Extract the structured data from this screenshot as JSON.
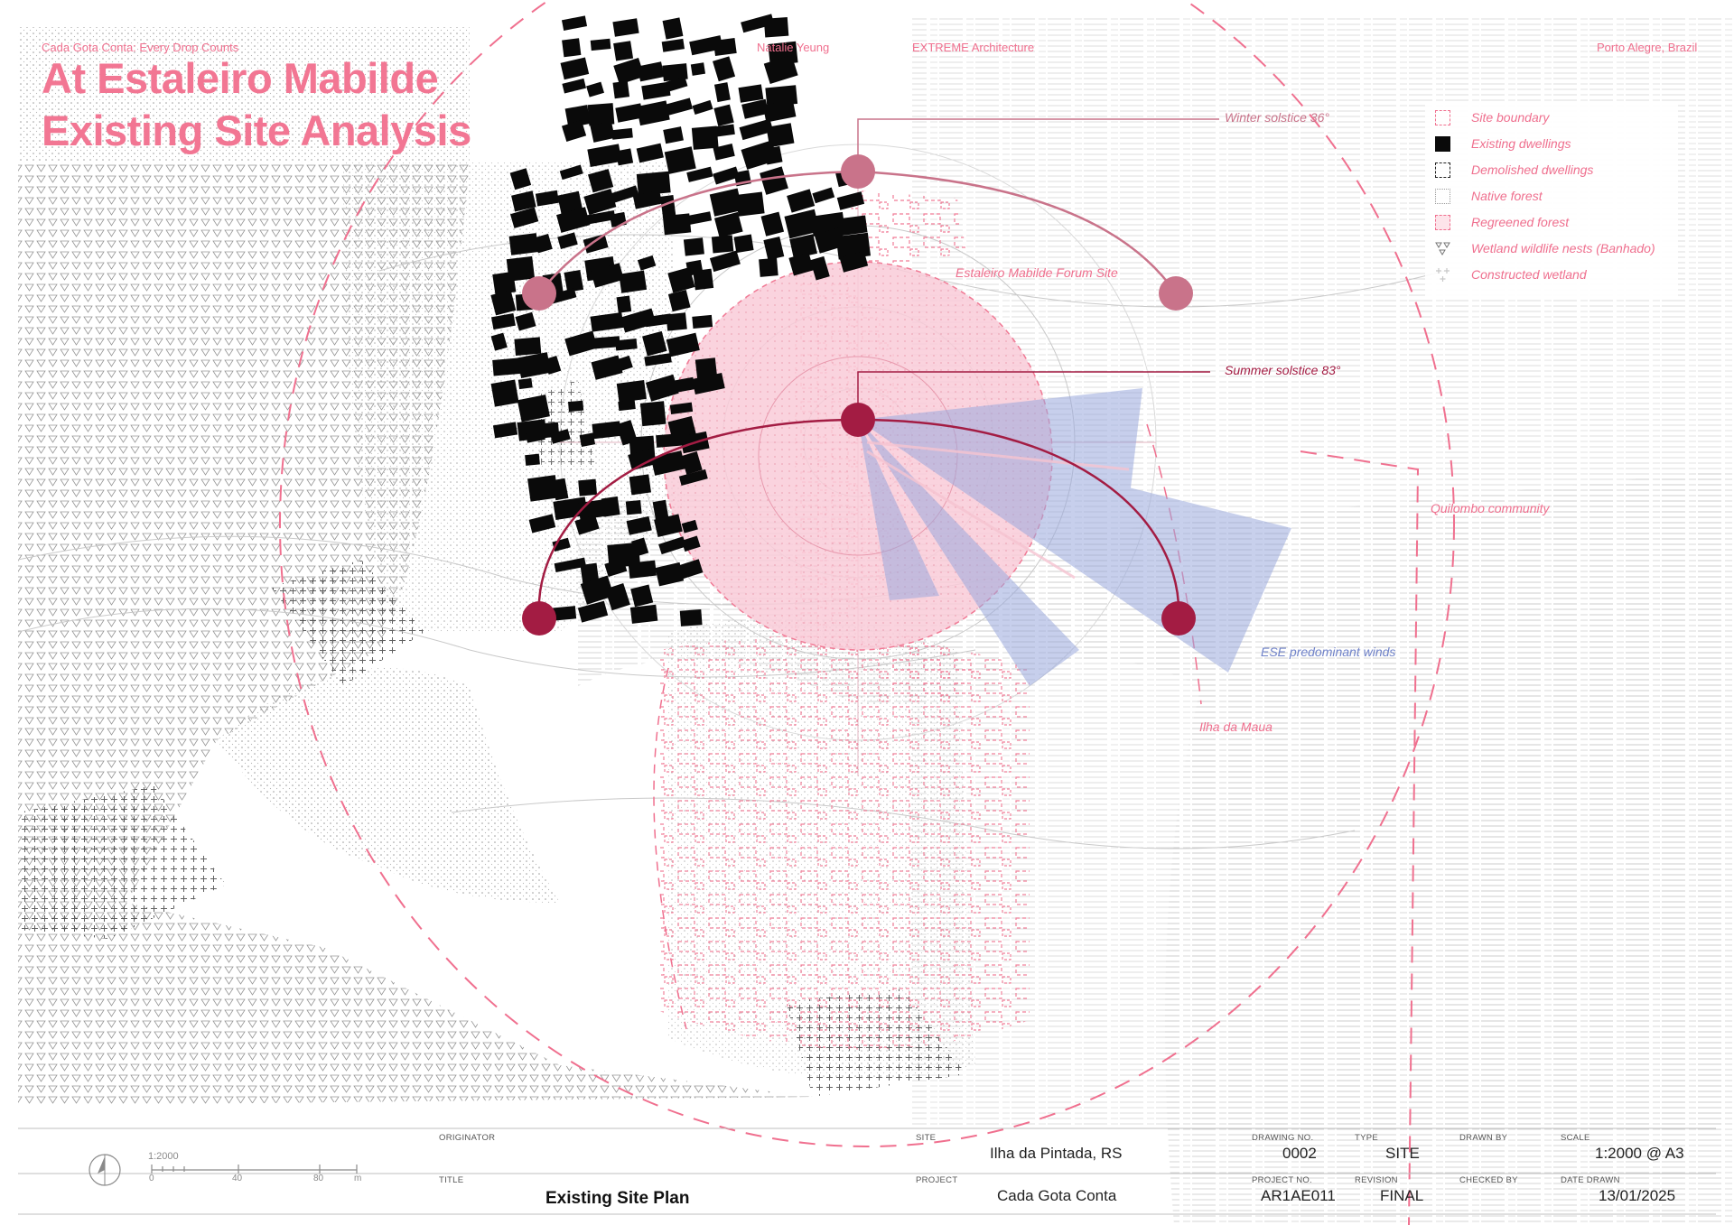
{
  "header": {
    "slogan": "Cada Gota Conta: Every Drop Counts",
    "author": "Natalie Yeung",
    "firm": "EXTREME Architecture",
    "location": "Porto Alegre, Brazil"
  },
  "title": {
    "line1": "At Estaleiro Mabilde",
    "line2": "Existing Site Analysis"
  },
  "annotations": {
    "winter": "Winter solstice 36°",
    "forum": "Estaleiro Mabilde Forum Site",
    "summer": "Summer solstice 83°",
    "quilombo": "Quilombo community",
    "winds": "ESE predominant winds",
    "ilha": "Ilha da Maua"
  },
  "legend": [
    {
      "label": "Site boundary",
      "icon": "dashed-square-icon"
    },
    {
      "label": "Existing dwellings",
      "icon": "solid-square-icon"
    },
    {
      "label": "Demolished dwellings",
      "icon": "dashed-black-square-icon"
    },
    {
      "label": "Native forest",
      "icon": "dotted-square-icon"
    },
    {
      "label": "Regreened forest",
      "icon": "pink-dashed-square-icon"
    },
    {
      "label": "Wetland wildlife nests (Banhado)",
      "icon": "triangle-pattern-icon"
    },
    {
      "label": "Constructed wetland",
      "icon": "cross-pattern-icon"
    }
  ],
  "scale_bar": {
    "ratio": "1:2000",
    "ticks": [
      "0",
      "40",
      "80",
      "m"
    ]
  },
  "title_block": {
    "originator_label": "ORIGINATOR",
    "title_label": "TITLE",
    "title_value": "Existing Site Plan",
    "site_label": "SITE",
    "site_value": "Ilha da Pintada, RS",
    "project_label": "PROJECT",
    "project_value": "Cada Gota Conta",
    "drawing_no_label": "DRAWING NO.",
    "drawing_no_value": "0002",
    "type_label": "TYPE",
    "type_value": "SITE",
    "drawn_by_label": "DRAWN BY",
    "scale_label": "SCALE",
    "scale_value": "1:2000 @ A3",
    "project_no_label": "PROJECT NO.",
    "project_no_value": "AR1AE011",
    "revision_label": "REVISION",
    "revision_value": "FINAL",
    "checked_by_label": "CHECKED BY",
    "date_label": "DATE DRAWN",
    "date_value": "13/01/2025"
  },
  "colors": {
    "accent_pink": "#f27693",
    "sun_dark": "#a31c43",
    "sun_light": "#c9738a",
    "wind_blue": "#9aa9dd",
    "forum_fill": "#f9cbd8"
  }
}
